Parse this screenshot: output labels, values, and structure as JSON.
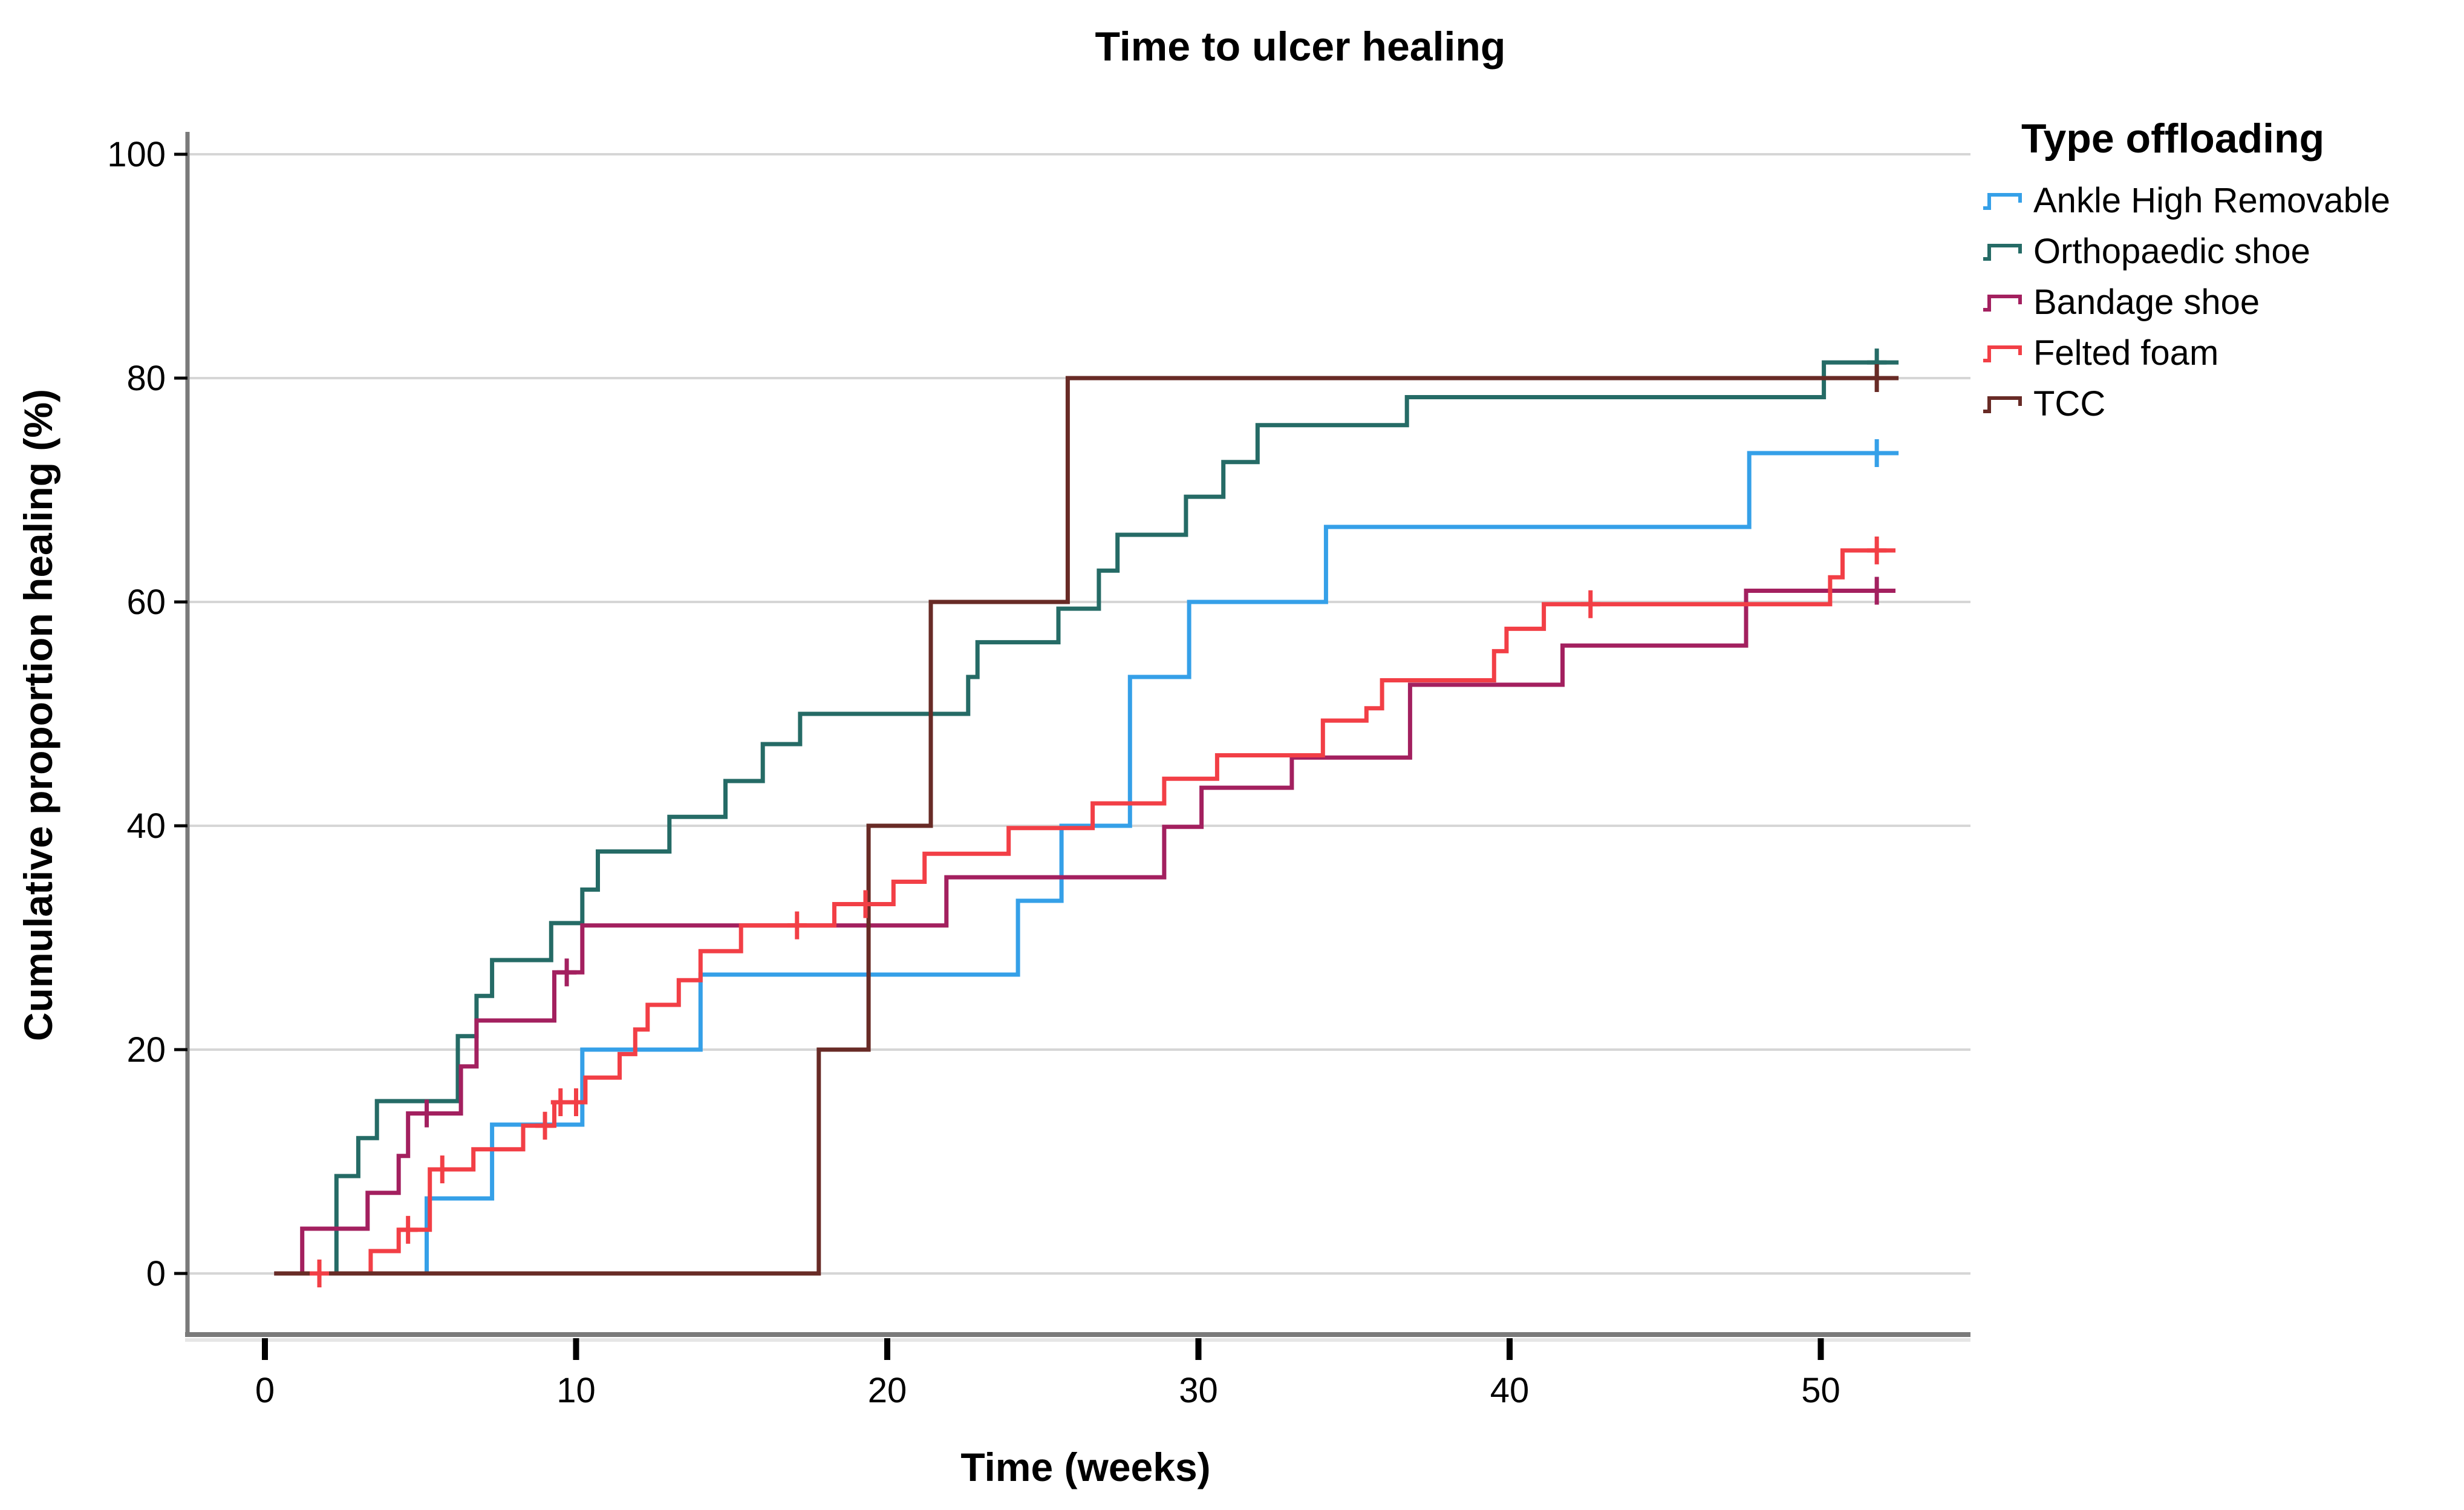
{
  "chart_data": {
    "type": "line",
    "subtype": "kaplan-meier-step",
    "title": "Time to ulcer healing",
    "xlabel": "Time (weeks)",
    "ylabel": "Cumulative proportion healing (%)",
    "x_ticks": [
      0,
      10,
      20,
      30,
      40,
      50
    ],
    "y_ticks": [
      0,
      20,
      40,
      60,
      80,
      100
    ],
    "xlim": [
      -2.5,
      55
    ],
    "ylim": [
      -5.5,
      102
    ],
    "grid": "horizontal",
    "grid_color": "#d6d6d6",
    "axis_color": "#7a7a7a",
    "legend_title": "Type offloading",
    "legend_position": "right",
    "series": [
      {
        "name": "Ankle High Removable",
        "color": "#35a0e8",
        "points": [
          [
            0.3,
            0
          ],
          [
            5.2,
            6.7
          ],
          [
            7.3,
            13.3
          ],
          [
            10.2,
            20
          ],
          [
            14,
            26.7
          ],
          [
            24.2,
            33.3
          ],
          [
            25.6,
            40
          ],
          [
            27.8,
            53.3
          ],
          [
            29.7,
            60
          ],
          [
            34.1,
            66.7
          ],
          [
            47.7,
            73.3
          ],
          [
            52.5,
            73.3
          ]
        ],
        "censors": [
          [
            51.8,
            73.3
          ]
        ]
      },
      {
        "name": "Orthopaedic shoe",
        "color": "#256b66",
        "points": [
          [
            0.3,
            0
          ],
          [
            2.3,
            8.7
          ],
          [
            3.0,
            12.1
          ],
          [
            3.6,
            15.4
          ],
          [
            6.2,
            21.2
          ],
          [
            6.8,
            24.8
          ],
          [
            7.3,
            28
          ],
          [
            9.2,
            31.3
          ],
          [
            10.2,
            34.3
          ],
          [
            10.7,
            37.7
          ],
          [
            13,
            40.8
          ],
          [
            14.8,
            44
          ],
          [
            16,
            47.3
          ],
          [
            17.2,
            50
          ],
          [
            22.6,
            53.3
          ],
          [
            22.9,
            56.4
          ],
          [
            25.5,
            59.4
          ],
          [
            26.8,
            62.8
          ],
          [
            27.4,
            66
          ],
          [
            29.6,
            69.4
          ],
          [
            30.8,
            72.5
          ],
          [
            31.9,
            75.8
          ],
          [
            36.7,
            78.3
          ],
          [
            50.1,
            81.4
          ],
          [
            52.5,
            81.4
          ]
        ],
        "censors": [
          [
            51.8,
            81.4
          ]
        ]
      },
      {
        "name": "Bandage shoe",
        "color": "#a3205f",
        "points": [
          [
            0.3,
            0
          ],
          [
            1.2,
            4
          ],
          [
            3.3,
            7.2
          ],
          [
            4.3,
            10.5
          ],
          [
            4.6,
            14.3
          ],
          [
            6.3,
            18.5
          ],
          [
            6.8,
            22.6
          ],
          [
            9.3,
            26.9
          ],
          [
            10.2,
            31.1
          ],
          [
            21.9,
            35.4
          ],
          [
            28.9,
            39.9
          ],
          [
            30.1,
            43.4
          ],
          [
            33,
            46.1
          ],
          [
            36.8,
            52.6
          ],
          [
            41.7,
            56.1
          ],
          [
            47.6,
            61
          ],
          [
            52.4,
            61
          ]
        ],
        "censors": [
          [
            5.2,
            14.3
          ],
          [
            9.7,
            26.9
          ],
          [
            51.8,
            61
          ]
        ]
      },
      {
        "name": "Felted foam",
        "color": "#f23f46",
        "points": [
          [
            0.3,
            0
          ],
          [
            3.4,
            2
          ],
          [
            4.3,
            3.9
          ],
          [
            5.3,
            9.3
          ],
          [
            6.7,
            11.1
          ],
          [
            8.3,
            13.2
          ],
          [
            9.3,
            15.3
          ],
          [
            10.3,
            17.5
          ],
          [
            11.4,
            19.6
          ],
          [
            11.9,
            21.8
          ],
          [
            12.3,
            24
          ],
          [
            13.3,
            26.2
          ],
          [
            14,
            28.8
          ],
          [
            15.3,
            31.1
          ],
          [
            18.3,
            33
          ],
          [
            20.2,
            35
          ],
          [
            21.2,
            37.5
          ],
          [
            23.9,
            39.8
          ],
          [
            26.6,
            42
          ],
          [
            28.9,
            44.2
          ],
          [
            30.6,
            46.3
          ],
          [
            34,
            49.4
          ],
          [
            35.4,
            50.5
          ],
          [
            35.9,
            53
          ],
          [
            39.5,
            55.6
          ],
          [
            39.9,
            57.6
          ],
          [
            41.1,
            59.8
          ],
          [
            50.3,
            62.2
          ],
          [
            50.7,
            64.6
          ],
          [
            52.4,
            64.6
          ]
        ],
        "censors": [
          [
            1.75,
            0
          ],
          [
            4.6,
            3.9
          ],
          [
            5.7,
            9.3
          ],
          [
            9.0,
            13.2
          ],
          [
            9.5,
            15.3
          ],
          [
            10,
            15.3
          ],
          [
            17.1,
            31.1
          ],
          [
            19.3,
            33
          ],
          [
            42.6,
            59.8
          ],
          [
            51.8,
            64.6
          ]
        ]
      },
      {
        "name": "TCC",
        "color": "#682b26",
        "points": [
          [
            0.3,
            0
          ],
          [
            17.8,
            20
          ],
          [
            19.4,
            40
          ],
          [
            21.4,
            60
          ],
          [
            25.8,
            80
          ],
          [
            52.5,
            80
          ]
        ],
        "censors": [
          [
            51.8,
            80
          ]
        ]
      }
    ]
  }
}
